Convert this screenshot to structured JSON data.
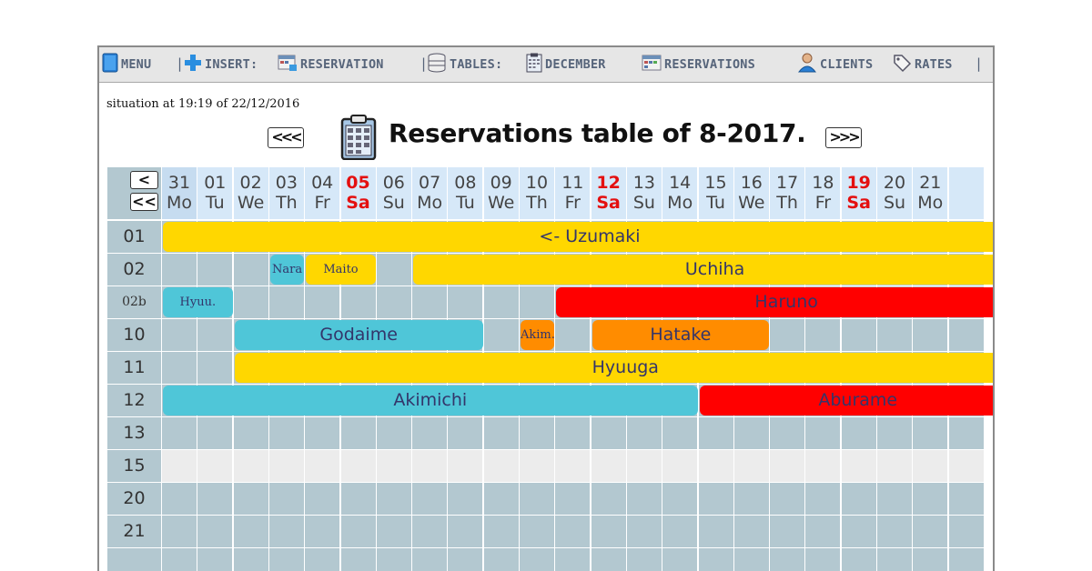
{
  "toolbar": {
    "menu": "MENU",
    "insert": "INSERT:",
    "reservation": "RESERVATION",
    "tables": "TABLES:",
    "december": "DECEMBER",
    "reservations": "RESERVATIONS",
    "clients": "CLIENTS",
    "rates": "RATES",
    "separator": "|",
    "icons": [
      "menu-book-icon",
      "plus-icon",
      "reservation-icon",
      "tables-icon",
      "calendar-icon",
      "reservations-icon",
      "user-icon",
      "tag-icon"
    ]
  },
  "situation": "situation at 19:19 of 22/12/2016",
  "title": "Reservations table of 8-2017.",
  "nav": {
    "prev": "<<<",
    "next": ">>>",
    "day_back": "<",
    "week_back": "<<"
  },
  "days": [
    {
      "n": "31",
      "d": "Mo"
    },
    {
      "n": "01",
      "d": "Tu"
    },
    {
      "n": "02",
      "d": "We"
    },
    {
      "n": "03",
      "d": "Th"
    },
    {
      "n": "04",
      "d": "Fr"
    },
    {
      "n": "05",
      "d": "Sa",
      "sat": true
    },
    {
      "n": "06",
      "d": "Su"
    },
    {
      "n": "07",
      "d": "Mo"
    },
    {
      "n": "08",
      "d": "Tu"
    },
    {
      "n": "09",
      "d": "We"
    },
    {
      "n": "10",
      "d": "Th"
    },
    {
      "n": "11",
      "d": "Fr"
    },
    {
      "n": "12",
      "d": "Sa",
      "sat": true
    },
    {
      "n": "13",
      "d": "Su"
    },
    {
      "n": "14",
      "d": "Mo"
    },
    {
      "n": "15",
      "d": "Tu"
    },
    {
      "n": "16",
      "d": "We"
    },
    {
      "n": "17",
      "d": "Th"
    },
    {
      "n": "18",
      "d": "Fr"
    },
    {
      "n": "19",
      "d": "Sa",
      "sat": true
    },
    {
      "n": "20",
      "d": "Su"
    },
    {
      "n": "21",
      "d": "Mo"
    }
  ],
  "rooms": [
    "01",
    "02",
    "02b",
    "10",
    "11",
    "12",
    "13",
    "15",
    "20",
    "21"
  ],
  "reservations": [
    {
      "room": 0,
      "start": 0,
      "end": 23,
      "label": "<- Uzumaki",
      "color": "yellow"
    },
    {
      "room": 1,
      "start": 3,
      "end": 4,
      "label": "Nara",
      "color": "cyan",
      "small": true
    },
    {
      "room": 1,
      "start": 4,
      "end": 6,
      "label": "Maito",
      "color": "yellow",
      "small": true
    },
    {
      "room": 1,
      "start": 7,
      "end": 23,
      "label": "Uchiha",
      "color": "yellow"
    },
    {
      "room": 2,
      "start": 0,
      "end": 2,
      "label": "Hyuu.",
      "color": "cyan",
      "small": true
    },
    {
      "room": 2,
      "start": 11,
      "end": 23,
      "label": "Haruno",
      "color": "red"
    },
    {
      "room": 3,
      "start": 2,
      "end": 9,
      "label": "Godaime",
      "color": "cyan"
    },
    {
      "room": 3,
      "start": 10,
      "end": 11,
      "label": "Akim.",
      "color": "orange",
      "small": true
    },
    {
      "room": 3,
      "start": 12,
      "end": 17,
      "label": "Hatake",
      "color": "orange"
    },
    {
      "room": 4,
      "start": 2,
      "end": 23,
      "label": "Hyuuga",
      "color": "yellow"
    },
    {
      "room": 5,
      "start": 0,
      "end": 15,
      "label": "Akimichi",
      "color": "cyan"
    },
    {
      "room": 5,
      "start": 15,
      "end": 23,
      "label": "Aburame",
      "color": "red"
    }
  ],
  "colors": {
    "yellow": "#ffd700",
    "cyan": "#4fc6d8",
    "orange": "#ff8c00",
    "red": "#ff0000",
    "cell": "#b3c8d0",
    "header_today": "#c6dcf0",
    "saturday_text": "#e41010"
  }
}
